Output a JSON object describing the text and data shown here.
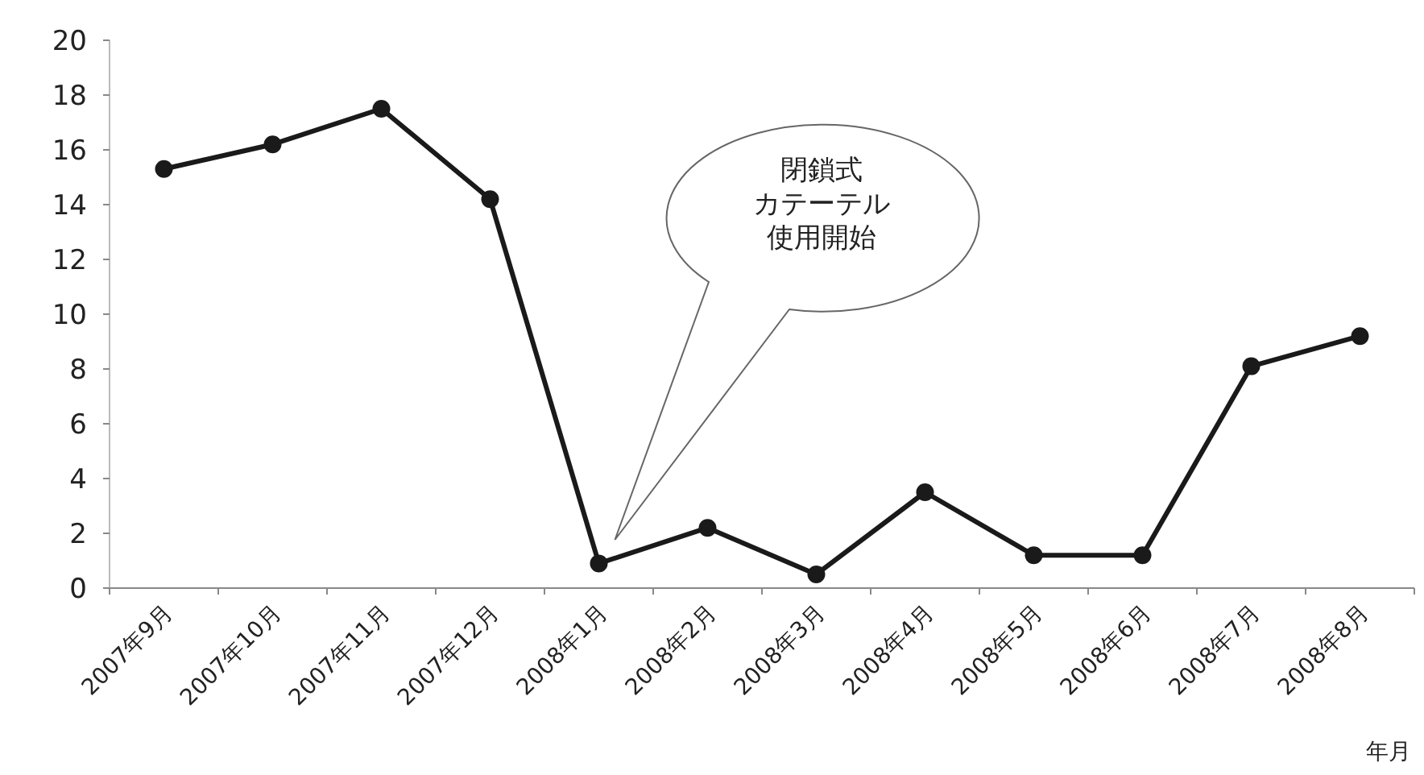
{
  "chart_data": {
    "type": "line",
    "categories": [
      "2007年9月",
      "2007年10月",
      "2007年11月",
      "2007年12月",
      "2008年1月",
      "2008年2月",
      "2008年3月",
      "2008年4月",
      "2008年5月",
      "2008年6月",
      "2008年7月",
      "2008年8月"
    ],
    "series": [
      {
        "color": "#1a1a1a",
        "values": [
          15.3,
          16.2,
          17.5,
          14.2,
          0.9,
          2.2,
          0.5,
          3.5,
          1.2,
          1.2,
          8.1,
          9.2
        ]
      }
    ],
    "xlabel": "年月",
    "ylim": [
      0,
      20
    ],
    "yticks": [
      0,
      2,
      4,
      6,
      8,
      10,
      12,
      14,
      16,
      18,
      20
    ],
    "annotations": [
      "閉鎖式カテーテル使用開始"
    ],
    "marker": "circle",
    "line_style": "solid",
    "grid": false
  }
}
